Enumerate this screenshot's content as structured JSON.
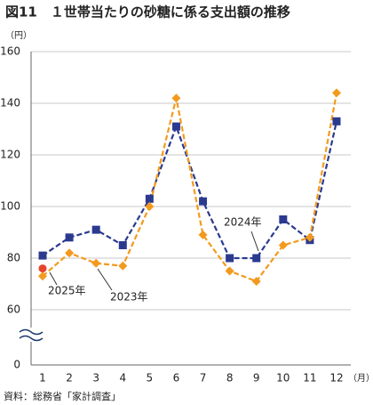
{
  "chart_data": {
    "type": "line",
    "title": "図11　１世帯当たりの砂糖に係る支出額の推移",
    "y_label": "（円）",
    "x_label": "（月）",
    "source": "資料：総務省「家計調査」",
    "categories": [
      "1",
      "2",
      "3",
      "4",
      "5",
      "6",
      "7",
      "8",
      "9",
      "10",
      "11",
      "12"
    ],
    "series": [
      {
        "name": "2024年",
        "color": "#2b3a8f",
        "marker": "square",
        "values": [
          81,
          88,
          91,
          85,
          103,
          131,
          102,
          80,
          80,
          95,
          87,
          133
        ]
      },
      {
        "name": "2023年",
        "color": "#f39a1e",
        "marker": "diamond",
        "values": [
          73,
          82,
          78,
          77,
          100,
          142,
          89,
          75,
          71,
          85,
          88,
          144
        ]
      },
      {
        "name": "2025年",
        "color": "#e5452b",
        "marker": "circle",
        "values": [
          76,
          null,
          null,
          null,
          null,
          null,
          null,
          null,
          null,
          null,
          null,
          null
        ]
      }
    ],
    "ylim": [
      0,
      160
    ],
    "axis_break": [
      0,
      60
    ],
    "yticks": [
      0,
      60,
      80,
      100,
      120,
      140,
      160
    ],
    "grid": true
  }
}
